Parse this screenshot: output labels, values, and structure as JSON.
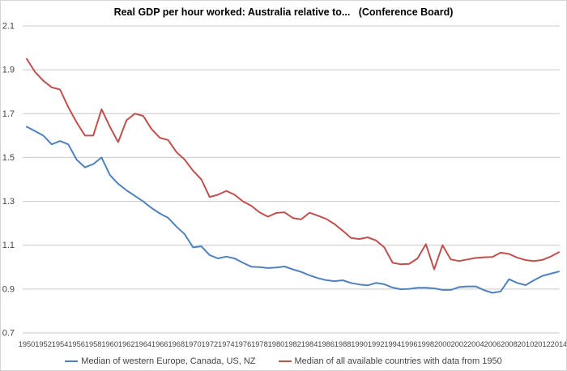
{
  "chart_data": {
    "type": "line",
    "title": "Real GDP per hour worked: Australia relative to...   (Conference Board)",
    "xlabel": "",
    "ylabel": "",
    "x_start": 1950,
    "x_end": 2014,
    "x_step_years": 1,
    "x_tick_labels": [
      "1950",
      "1952",
      "1954",
      "1956",
      "1958",
      "1960",
      "1962",
      "1964",
      "1966",
      "1968",
      "1970",
      "1972",
      "1974",
      "1976",
      "1978",
      "1980",
      "1982",
      "1984",
      "1986",
      "1988",
      "1990",
      "1992",
      "1994",
      "1996",
      "1998",
      "2000",
      "2002",
      "2004",
      "2006",
      "2008",
      "2010",
      "2012",
      "2014"
    ],
    "y_tick_labels": [
      "0.7",
      "0.9",
      "1.1",
      "1.3",
      "1.5",
      "1.7",
      "1.9",
      "2.1"
    ],
    "ylim": [
      0.7,
      2.1
    ],
    "grid": "horizontal-only",
    "legend_position": "bottom-center",
    "series": [
      {
        "name": "Median of western Europe, Canada, US, NZ",
        "color": "#4F81BD",
        "values": [
          1.64,
          1.62,
          1.6,
          1.56,
          1.575,
          1.56,
          1.49,
          1.455,
          1.47,
          1.5,
          1.42,
          1.38,
          1.35,
          1.325,
          1.3,
          1.27,
          1.245,
          1.225,
          1.185,
          1.15,
          1.09,
          1.095,
          1.055,
          1.04,
          1.048,
          1.04,
          1.02,
          1.002,
          1.0,
          0.996,
          0.998,
          1.003,
          0.99,
          0.978,
          0.963,
          0.95,
          0.941,
          0.936,
          0.94,
          0.928,
          0.921,
          0.917,
          0.928,
          0.922,
          0.907,
          0.899,
          0.901,
          0.906,
          0.906,
          0.903,
          0.896,
          0.896,
          0.909,
          0.912,
          0.912,
          0.895,
          0.883,
          0.889,
          0.945,
          0.928,
          0.918,
          0.94,
          0.96,
          0.97,
          0.98
        ]
      },
      {
        "name": "Median of all available countries with data from 1950",
        "color": "#C0504D",
        "values": [
          1.95,
          1.89,
          1.85,
          1.82,
          1.81,
          1.73,
          1.66,
          1.6,
          1.6,
          1.72,
          1.64,
          1.57,
          1.67,
          1.7,
          1.69,
          1.63,
          1.59,
          1.58,
          1.525,
          1.49,
          1.44,
          1.4,
          1.32,
          1.33,
          1.348,
          1.33,
          1.3,
          1.28,
          1.25,
          1.23,
          1.247,
          1.25,
          1.224,
          1.218,
          1.248,
          1.235,
          1.22,
          1.197,
          1.166,
          1.133,
          1.128,
          1.136,
          1.122,
          1.09,
          1.02,
          1.013,
          1.015,
          1.04,
          1.105,
          0.99,
          1.1,
          1.035,
          1.028,
          1.035,
          1.042,
          1.045,
          1.046,
          1.066,
          1.06,
          1.043,
          1.032,
          1.028,
          1.033,
          1.048,
          1.068
        ]
      }
    ]
  },
  "colors": {
    "background": "#FFFFFF",
    "gridline": "#C9C9C9",
    "axis_text": "#444444",
    "title_text": "#000000",
    "frame_border": "#D4D4D4"
  }
}
